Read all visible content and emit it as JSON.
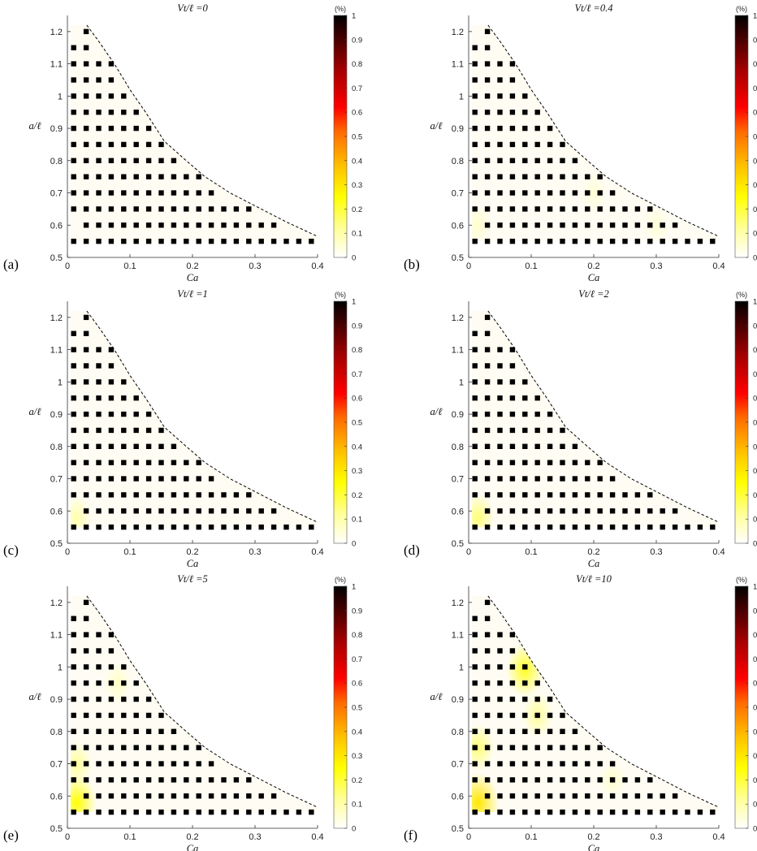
{
  "figure": {
    "colorbar": {
      "unit": "(%)",
      "ticks": [
        "0",
        "0.1",
        "0.2",
        "0.3",
        "0.4",
        "0.5",
        "0.6",
        "0.7",
        "0.8",
        "0.9",
        "1"
      ]
    }
  },
  "chart_data": [
    {
      "panel_label": "(a)",
      "title": "Vt/ℓ =0",
      "type": "heatmap",
      "xlabel": "Ca",
      "ylabel": "a/ℓ",
      "xlim": [
        0,
        0.4
      ],
      "ylim": [
        0.5,
        1.25
      ],
      "xticks": [
        "0",
        "0.1",
        "0.2",
        "0.3",
        "0.4"
      ],
      "yticks": [
        "0.5",
        "0.6",
        "0.7",
        "0.8",
        "0.9",
        "1",
        "1.1",
        "1.2"
      ],
      "colorbar_range": [
        0,
        1
      ],
      "hotspots": []
    },
    {
      "panel_label": "(b)",
      "title": "Vt/ℓ =0.4",
      "type": "heatmap",
      "xlabel": "Ca",
      "ylabel": "a/ℓ",
      "xlim": [
        0,
        0.4
      ],
      "ylim": [
        0.5,
        1.25
      ],
      "xticks": [
        "0",
        "0.1",
        "0.2",
        "0.3",
        "0.4"
      ],
      "yticks": [
        "0.5",
        "0.6",
        "0.7",
        "0.8",
        "0.9",
        "1",
        "1.1",
        "1.2"
      ],
      "colorbar_range": [
        0,
        1
      ],
      "hotspots": [
        {
          "ca": 0.015,
          "a": 0.6,
          "value": 0.06
        },
        {
          "ca": 0.2,
          "a": 0.7,
          "value": 0.05
        },
        {
          "ca": 0.3,
          "a": 0.6,
          "value": 0.05
        }
      ]
    },
    {
      "panel_label": "(c)",
      "title": "Vt/ℓ =1",
      "type": "heatmap",
      "xlabel": "Ca",
      "ylabel": "a/ℓ",
      "xlim": [
        0,
        0.4
      ],
      "ylim": [
        0.5,
        1.25
      ],
      "xticks": [
        "0",
        "0.1",
        "0.2",
        "0.3",
        "0.4"
      ],
      "yticks": [
        "0.5",
        "0.6",
        "0.7",
        "0.8",
        "0.9",
        "1",
        "1.1",
        "1.2"
      ],
      "colorbar_range": [
        0,
        1
      ],
      "hotspots": [
        {
          "ca": 0.015,
          "a": 0.58,
          "value": 0.1
        }
      ]
    },
    {
      "panel_label": "(d)",
      "title": "Vt/ℓ =2",
      "type": "heatmap",
      "xlabel": "Ca",
      "ylabel": "a/ℓ",
      "xlim": [
        0,
        0.4
      ],
      "ylim": [
        0.5,
        1.25
      ],
      "xticks": [
        "0",
        "0.1",
        "0.2",
        "0.3",
        "0.4"
      ],
      "yticks": [
        "0.5",
        "0.6",
        "0.7",
        "0.8",
        "0.9",
        "1",
        "1.1",
        "1.2"
      ],
      "colorbar_range": [
        0,
        1
      ],
      "hotspots": [
        {
          "ca": 0.015,
          "a": 0.58,
          "value": 0.15
        }
      ]
    },
    {
      "panel_label": "(e)",
      "title": "Vt/ℓ =5",
      "type": "heatmap",
      "xlabel": "Ca",
      "ylabel": "a/ℓ",
      "xlim": [
        0,
        0.4
      ],
      "ylim": [
        0.5,
        1.25
      ],
      "xticks": [
        "0",
        "0.1",
        "0.2",
        "0.3",
        "0.4"
      ],
      "yticks": [
        "0.5",
        "0.6",
        "0.7",
        "0.8",
        "0.9",
        "1",
        "1.1",
        "1.2"
      ],
      "colorbar_range": [
        0,
        1
      ],
      "hotspots": [
        {
          "ca": 0.015,
          "a": 0.58,
          "value": 0.25
        },
        {
          "ca": 0.015,
          "a": 0.7,
          "value": 0.12
        },
        {
          "ca": 0.08,
          "a": 0.95,
          "value": 0.07
        }
      ]
    },
    {
      "panel_label": "(f)",
      "title": "Vt/ℓ =10",
      "type": "heatmap",
      "xlabel": "Ca",
      "ylabel": "a/ℓ",
      "xlim": [
        0,
        0.4
      ],
      "ylim": [
        0.5,
        1.25
      ],
      "xticks": [
        "0",
        "0.1",
        "0.2",
        "0.3",
        "0.4"
      ],
      "yticks": [
        "0.5",
        "0.6",
        "0.7",
        "0.8",
        "0.9",
        "1",
        "1.1",
        "1.2"
      ],
      "colorbar_range": [
        0,
        1
      ],
      "hotspots": [
        {
          "ca": 0.015,
          "a": 0.58,
          "value": 0.3
        },
        {
          "ca": 0.015,
          "a": 0.75,
          "value": 0.15
        },
        {
          "ca": 0.09,
          "a": 0.99,
          "value": 0.22
        },
        {
          "ca": 0.11,
          "a": 0.85,
          "value": 0.12
        },
        {
          "ca": 0.23,
          "a": 0.65,
          "value": 0.06
        }
      ]
    }
  ],
  "grid_points": [
    {
      "a": 0.55,
      "ca": [
        0.01,
        0.03,
        0.05,
        0.07,
        0.09,
        0.11,
        0.13,
        0.15,
        0.17,
        0.19,
        0.21,
        0.23,
        0.25,
        0.27,
        0.29,
        0.31,
        0.33,
        0.35,
        0.37,
        0.39
      ]
    },
    {
      "a": 0.6,
      "ca": [
        0.03,
        0.05,
        0.07,
        0.09,
        0.11,
        0.13,
        0.15,
        0.17,
        0.19,
        0.21,
        0.23,
        0.25,
        0.27,
        0.29,
        0.31,
        0.33
      ]
    },
    {
      "a": 0.65,
      "ca": [
        0.01,
        0.03,
        0.05,
        0.07,
        0.09,
        0.11,
        0.13,
        0.15,
        0.17,
        0.19,
        0.21,
        0.23,
        0.25,
        0.27,
        0.29
      ]
    },
    {
      "a": 0.7,
      "ca": [
        0.01,
        0.03,
        0.05,
        0.07,
        0.09,
        0.11,
        0.13,
        0.15,
        0.17,
        0.19,
        0.21,
        0.23
      ]
    },
    {
      "a": 0.75,
      "ca": [
        0.01,
        0.03,
        0.05,
        0.07,
        0.09,
        0.11,
        0.13,
        0.15,
        0.17,
        0.19,
        0.21
      ]
    },
    {
      "a": 0.8,
      "ca": [
        0.01,
        0.03,
        0.05,
        0.07,
        0.09,
        0.11,
        0.13,
        0.15,
        0.17
      ]
    },
    {
      "a": 0.85,
      "ca": [
        0.01,
        0.03,
        0.05,
        0.07,
        0.09,
        0.11,
        0.13,
        0.15
      ]
    },
    {
      "a": 0.9,
      "ca": [
        0.01,
        0.03,
        0.05,
        0.07,
        0.09,
        0.11,
        0.13
      ]
    },
    {
      "a": 0.95,
      "ca": [
        0.01,
        0.03,
        0.05,
        0.07,
        0.09,
        0.11
      ]
    },
    {
      "a": 1.0,
      "ca": [
        0.01,
        0.03,
        0.05,
        0.07,
        0.09
      ]
    },
    {
      "a": 1.05,
      "ca": [
        0.01,
        0.03,
        0.05,
        0.07
      ]
    },
    {
      "a": 1.1,
      "ca": [
        0.01,
        0.03,
        0.05,
        0.07
      ]
    },
    {
      "a": 1.15,
      "ca": [
        0.01,
        0.03
      ]
    },
    {
      "a": 1.2,
      "ca": [
        0.03
      ]
    }
  ],
  "boundary_curve": [
    [
      0.031,
      1.22
    ],
    [
      0.05,
      1.17
    ],
    [
      0.075,
      1.1
    ],
    [
      0.1,
      1.02
    ],
    [
      0.125,
      0.95
    ],
    [
      0.155,
      0.86
    ],
    [
      0.19,
      0.8
    ],
    [
      0.22,
      0.75
    ],
    [
      0.26,
      0.7
    ],
    [
      0.3,
      0.66
    ],
    [
      0.35,
      0.61
    ],
    [
      0.4,
      0.565
    ]
  ]
}
